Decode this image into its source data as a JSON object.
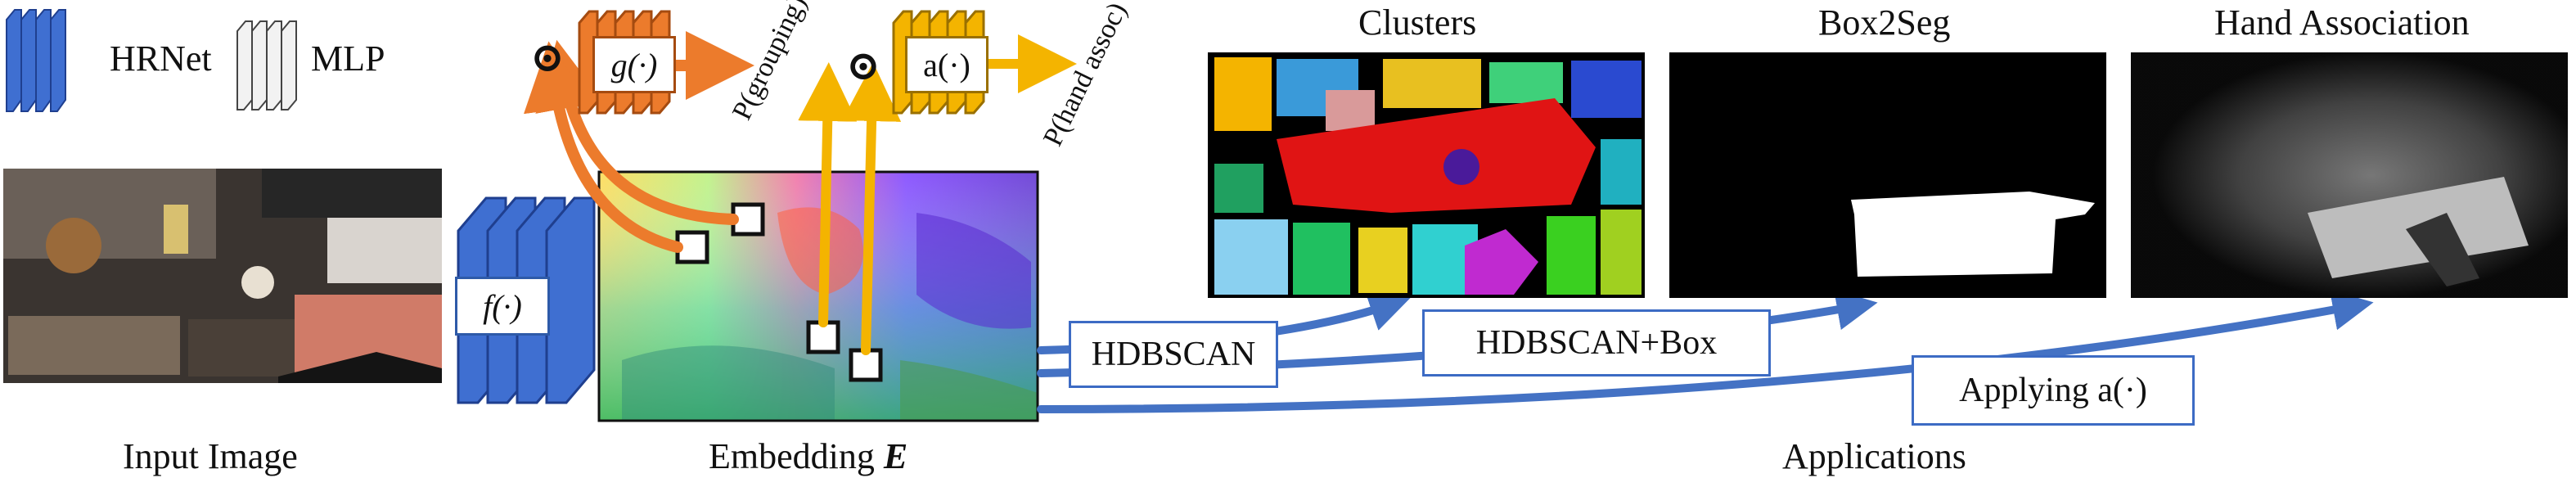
{
  "legend": {
    "hrnet": "HRNet",
    "mlp": "MLP"
  },
  "modules": {
    "f": "f(·)",
    "g": "g(·)",
    "a": "a(·)",
    "g_output": "P(grouping)",
    "a_output": "P(hand assoc)",
    "product_symbol": "⊙"
  },
  "captions": {
    "input": "Input Image",
    "embedding_prefix": "Embedding ",
    "embedding_symbol": "E",
    "applications": "Applications"
  },
  "panels": {
    "clusters": "Clusters",
    "box2seg": "Box2Seg",
    "hand_assoc": "Hand Association"
  },
  "apps": {
    "hdbscan": "HDBSCAN",
    "hdbscan_box": "HDBSCAN+Box",
    "applying": "Applying a(·)"
  },
  "colors": {
    "hrnet_blue": "#3f6fd1",
    "mlp_grey": "#f2f2f2",
    "g_orange": "#ec7b2c",
    "a_yellow": "#f4b400",
    "arrow_blue": "#4472c4"
  }
}
